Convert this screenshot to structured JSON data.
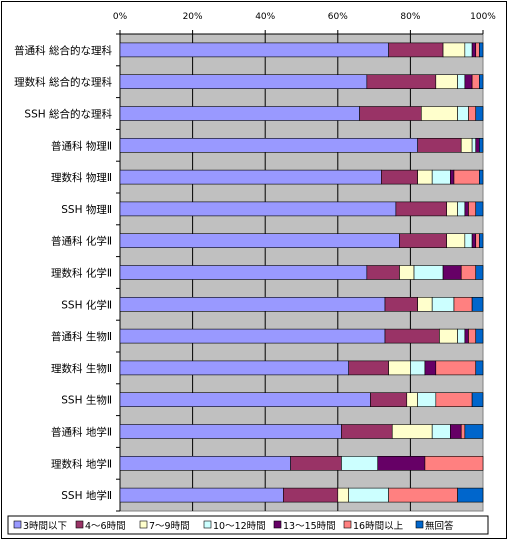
{
  "chart_data": {
    "type": "bar",
    "orientation": "horizontal",
    "stacked": "percent",
    "xlim": [
      0,
      100
    ],
    "x_ticks": [
      "0%",
      "20%",
      "40%",
      "60%",
      "80%",
      "100%"
    ],
    "grid": true,
    "legend_position": "bottom",
    "categories": [
      "普通科 総合的な理科",
      "理数科 総合的な理科",
      "SSH 総合的な理科",
      "普通科 物理Ⅱ",
      "理数科 物理Ⅱ",
      "SSH 物理Ⅱ",
      "普通科 化学Ⅱ",
      "理数科 化学Ⅱ",
      "SSH 化学Ⅱ",
      "普通科 生物Ⅱ",
      "理数科 生物Ⅱ",
      "SSH 生物Ⅱ",
      "普通科 地学Ⅱ",
      "理数科 地学Ⅱ",
      "SSH 地学Ⅱ"
    ],
    "series": [
      {
        "name": "3時間以下",
        "color": "#9999FF",
        "values": [
          74,
          68,
          66,
          82,
          72,
          76,
          77,
          68,
          73,
          73,
          63,
          69,
          61,
          47,
          45
        ]
      },
      {
        "name": "4～6時間",
        "color": "#993366",
        "values": [
          15,
          19,
          17,
          12,
          10,
          14,
          13,
          9,
          9,
          15,
          11,
          10,
          14,
          14,
          15
        ]
      },
      {
        "name": "7～9時間",
        "color": "#FFFFCC",
        "values": [
          6,
          6,
          10,
          3,
          4,
          3,
          5,
          4,
          4,
          5,
          6,
          3,
          11,
          0,
          3
        ]
      },
      {
        "name": "10～12時間",
        "color": "#CCFFFF",
        "values": [
          2,
          2,
          3,
          1,
          5,
          2,
          2,
          8,
          6,
          2,
          4,
          5,
          5,
          10,
          11
        ]
      },
      {
        "name": "13～15時間",
        "color": "#660066",
        "values": [
          1,
          2,
          0,
          1,
          1,
          1,
          1,
          5,
          0,
          1,
          3,
          0,
          3,
          13,
          0
        ]
      },
      {
        "name": "16時間以上",
        "color": "#FF8080",
        "values": [
          1,
          2,
          2,
          0,
          7,
          2,
          1,
          4,
          5,
          2,
          11,
          10,
          1,
          16,
          19
        ]
      },
      {
        "name": "無回答",
        "color": "#0066CC",
        "values": [
          1,
          1,
          2,
          1,
          1,
          2,
          1,
          2,
          3,
          2,
          2,
          3,
          5,
          0,
          7
        ]
      }
    ]
  }
}
